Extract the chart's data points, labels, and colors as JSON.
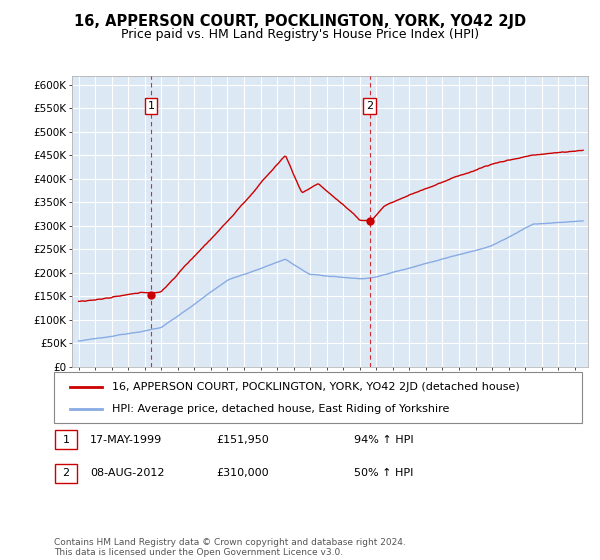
{
  "title": "16, APPERSON COURT, POCKLINGTON, YORK, YO42 2JD",
  "subtitle": "Price paid vs. HM Land Registry's House Price Index (HPI)",
  "ylabel_ticks": [
    0,
    50000,
    100000,
    150000,
    200000,
    250000,
    300000,
    350000,
    400000,
    450000,
    500000,
    550000,
    600000
  ],
  "ylabel_labels": [
    "£0",
    "£50K",
    "£100K",
    "£150K",
    "£200K",
    "£250K",
    "£300K",
    "£350K",
    "£400K",
    "£450K",
    "£500K",
    "£550K",
    "£600K"
  ],
  "ylim": [
    0,
    620000
  ],
  "xlim_start": 1994.6,
  "xlim_end": 2025.8,
  "background_color": "#dce9f5",
  "grid_color": "#ffffff",
  "red_line_color": "#cc0000",
  "blue_line_color": "#89abe3",
  "sale1_x": 1999.37,
  "sale1_y": 151950,
  "sale1_label": "1",
  "sale2_x": 2012.59,
  "sale2_y": 310000,
  "sale2_label": "2",
  "marker_color": "#cc0000",
  "vline_color": "#cc0000",
  "legend_line1": "16, APPERSON COURT, POCKLINGTON, YORK, YO42 2JD (detached house)",
  "legend_line2": "HPI: Average price, detached house, East Riding of Yorkshire",
  "table_row1": [
    "1",
    "17-MAY-1999",
    "£151,950",
    "94% ↑ HPI"
  ],
  "table_row2": [
    "2",
    "08-AUG-2012",
    "£310,000",
    "50% ↑ HPI"
  ],
  "footnote": "Contains HM Land Registry data © Crown copyright and database right 2024.\nThis data is licensed under the Open Government Licence v3.0.",
  "title_fontsize": 10.5,
  "subtitle_fontsize": 9,
  "tick_fontsize": 7.5,
  "legend_fontsize": 8
}
